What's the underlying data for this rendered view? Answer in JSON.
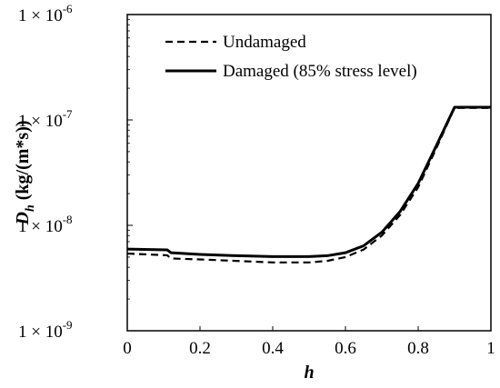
{
  "chart_data": {
    "type": "line",
    "xlabel": "h",
    "ylabel_main": "D",
    "ylabel_sub": "h",
    "ylabel_unit": " (kg/(m*s))",
    "xlim": [
      0,
      1
    ],
    "ylim": [
      1e-09,
      1e-06
    ],
    "y_scale": "log",
    "grid": false,
    "legend_position": "top-left",
    "x_ticks": [
      0,
      0.2,
      0.4,
      0.6,
      0.8,
      1
    ],
    "x_tick_labels": [
      "0",
      "0.2",
      "0.4",
      "0.6",
      "0.8",
      "1"
    ],
    "y_ticks": [
      {
        "value": 1e-09,
        "base": "1 × 10",
        "exp": "-9"
      },
      {
        "value": 1e-08,
        "base": "1 × 10",
        "exp": "-8"
      },
      {
        "value": 1e-07,
        "base": "1 × 10",
        "exp": "-7"
      },
      {
        "value": 1e-06,
        "base": "1 × 10",
        "exp": "-6"
      }
    ],
    "series": [
      {
        "name": "Undamaged",
        "style": "dashed",
        "color": "#000000",
        "x": [
          0,
          0.11,
          0.12,
          0.2,
          0.3,
          0.4,
          0.5,
          0.55,
          0.6,
          0.65,
          0.7,
          0.75,
          0.8,
          0.85,
          0.9,
          1.0
        ],
        "y": [
          5.4e-09,
          5.2e-09,
          4.85e-09,
          4.75e-09,
          4.6e-09,
          4.45e-09,
          4.45e-09,
          4.6e-09,
          5e-09,
          5.9e-09,
          8e-09,
          1.25e-08,
          2.3e-08,
          5.4e-08,
          1.3e-07,
          1.3e-07
        ]
      },
      {
        "name": "Damaged (85% stress level)",
        "style": "solid",
        "color": "#000000",
        "x": [
          0,
          0.11,
          0.12,
          0.2,
          0.3,
          0.4,
          0.5,
          0.55,
          0.6,
          0.65,
          0.7,
          0.75,
          0.8,
          0.85,
          0.9,
          1.0
        ],
        "y": [
          5.95e-09,
          5.85e-09,
          5.5e-09,
          5.3e-09,
          5.15e-09,
          5.05e-09,
          5.05e-09,
          5.15e-09,
          5.5e-09,
          6.4e-09,
          8.6e-09,
          1.35e-08,
          2.5e-08,
          5.7e-08,
          1.32e-07,
          1.32e-07
        ]
      }
    ]
  }
}
